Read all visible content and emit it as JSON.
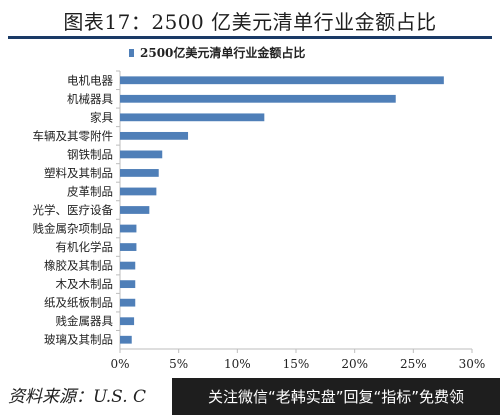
{
  "figure": {
    "title": "图表17：2500 亿美元清单行业金额占比",
    "source": "资料来源：U.S. C",
    "watermark": "关注微信“老韩实盘”回复“指标”免费领"
  },
  "chart_data": {
    "type": "bar",
    "orientation": "horizontal",
    "title": "",
    "categories": [
      "电机电器",
      "机械器具",
      "家具",
      "车辆及其零附件",
      "钢铁制品",
      "塑料及其制品",
      "皮革制品",
      "光学、医疗设备",
      "贱金属杂项制品",
      "有机化学品",
      "橡胶及其制品",
      "木及木制品",
      "纸及纸板制品",
      "贱金属器具",
      "玻璃及其制品"
    ],
    "series": [
      {
        "name": "2500亿美元清单行业金额占比",
        "values": [
          27.6,
          23.5,
          12.3,
          5.8,
          3.6,
          3.3,
          3.1,
          2.5,
          1.4,
          1.4,
          1.3,
          1.3,
          1.3,
          1.2,
          1.0
        ]
      }
    ],
    "xlabel": "",
    "ylabel": "",
    "xlim": [
      0,
      30
    ],
    "x_ticks": [
      "0%",
      "5%",
      "10%",
      "15%",
      "20%",
      "25%",
      "30%"
    ],
    "legend_position": "top",
    "grid": false,
    "bar_color": "#4f7fb8"
  }
}
